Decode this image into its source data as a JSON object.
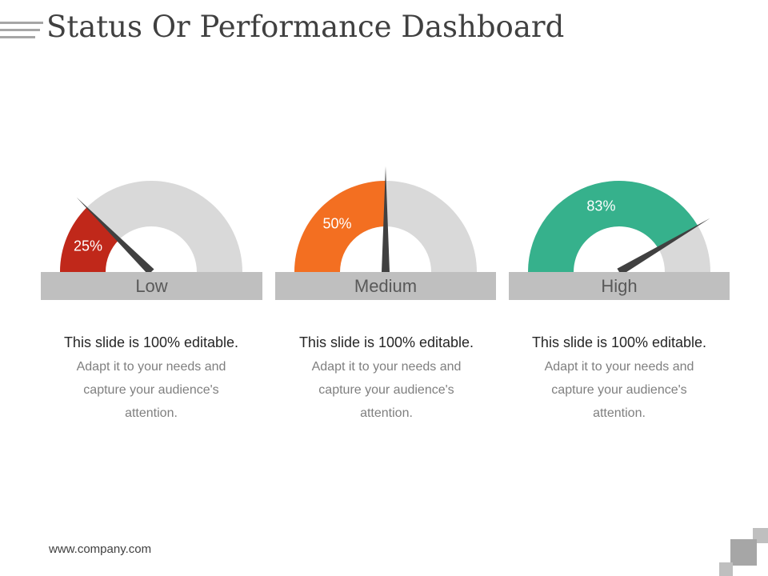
{
  "title": "Status Or Performance Dashboard",
  "gauges": [
    {
      "percent": 25,
      "percent_label": "25%",
      "label": "Low",
      "color": "#c0281a",
      "heading": "This slide is 100% editable.",
      "body": "Adapt it to your needs and capture your audience's attention."
    },
    {
      "percent": 50,
      "percent_label": "50%",
      "label": "Medium",
      "color": "#f36f21",
      "heading": "This slide is 100% editable.",
      "body": "Adapt it to your needs and capture your audience's attention."
    },
    {
      "percent": 83,
      "percent_label": "83%",
      "label": "High",
      "color": "#36b18c",
      "heading": "This slide is 100% editable.",
      "body": "Adapt it to your needs and capture your audience's attention."
    }
  ],
  "colors": {
    "track": "#d9d9d9",
    "needle": "#404040",
    "label_bar": "#bfbfbf"
  },
  "footer": {
    "website": "www.company.com"
  }
}
